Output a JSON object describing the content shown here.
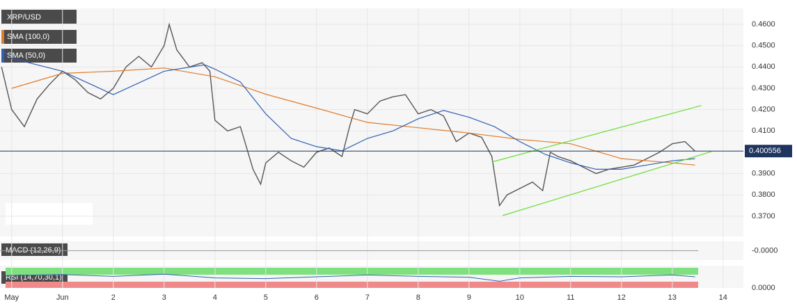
{
  "chart_data": {
    "type": "line",
    "symbol": "XRP/USD",
    "xlim": [
      -0.23,
      14.4
    ],
    "ylim": [
      0.3605,
      0.4675
    ],
    "grid": true,
    "xticks": [
      {
        "value": 0,
        "label": "May"
      },
      {
        "value": 1,
        "label": "Jun"
      },
      2,
      3,
      4,
      5,
      6,
      7,
      8,
      9,
      10,
      11,
      12,
      13,
      14
    ],
    "yticks": [
      {
        "value": 0.46,
        "label": "0.4600"
      },
      {
        "value": 0.45,
        "label": "0.4500"
      },
      {
        "value": 0.44,
        "label": "0.4400"
      },
      {
        "value": 0.43,
        "label": "0.4300"
      },
      {
        "value": 0.42,
        "label": "0.4200"
      },
      {
        "value": 0.41,
        "label": "0.4100"
      },
      {
        "value": 0.39,
        "label": "0.3900"
      },
      {
        "value": 0.38,
        "label": "0.3800"
      },
      {
        "value": 0.37,
        "label": "0.3700"
      }
    ],
    "last_price": 0.400556,
    "last_price_color": "#1f3560",
    "series": [
      {
        "name": "XRP/USD",
        "color": "#555555",
        "x": [
          -0.2,
          0,
          0.25,
          0.5,
          0.75,
          1,
          1.25,
          1.5,
          1.75,
          2,
          2.25,
          2.5,
          2.75,
          3,
          3.1,
          3.25,
          3.5,
          3.75,
          3.9,
          4,
          4.25,
          4.5,
          4.75,
          4.9,
          5,
          5.25,
          5.5,
          5.75,
          6,
          6.25,
          6.5,
          6.65,
          6.75,
          7,
          7.25,
          7.5,
          7.75,
          8,
          8.25,
          8.5,
          8.75,
          9,
          9.25,
          9.45,
          9.6,
          9.75,
          10,
          10.25,
          10.45,
          10.6,
          10.75,
          11,
          11.25,
          11.5,
          11.75,
          12,
          12.25,
          12.5,
          12.75,
          13,
          13.25,
          13.45
        ],
        "values": [
          0.44,
          0.42,
          0.412,
          0.425,
          0.432,
          0.438,
          0.434,
          0.428,
          0.425,
          0.43,
          0.44,
          0.445,
          0.44,
          0.45,
          0.46,
          0.448,
          0.44,
          0.442,
          0.438,
          0.415,
          0.41,
          0.412,
          0.392,
          0.385,
          0.395,
          0.4,
          0.396,
          0.393,
          0.4,
          0.402,
          0.398,
          0.412,
          0.42,
          0.418,
          0.424,
          0.426,
          0.427,
          0.418,
          0.42,
          0.417,
          0.405,
          0.409,
          0.407,
          0.398,
          0.375,
          0.38,
          0.383,
          0.386,
          0.382,
          0.4,
          0.398,
          0.396,
          0.393,
          0.39,
          0.392,
          0.393,
          0.394,
          0.397,
          0.4,
          0.404,
          0.405,
          0.4005
        ]
      },
      {
        "name": "SMA (100,0)",
        "color": "#e07b2a",
        "x": [
          0,
          1,
          2,
          3,
          4,
          5,
          6,
          7,
          8,
          9,
          10,
          11,
          12,
          13,
          13.45
        ],
        "values": [
          0.43,
          0.437,
          0.438,
          0.4395,
          0.4354,
          0.4272,
          0.4207,
          0.414,
          0.4115,
          0.409,
          0.406,
          0.404,
          0.397,
          0.395,
          0.394
        ]
      },
      {
        "name": "SMA (50,0)",
        "color": "#2f5fb3",
        "x": [
          -0.2,
          0,
          1,
          2,
          3,
          3.8,
          4,
          4.5,
          5,
          5.5,
          6,
          6.5,
          7,
          7.5,
          8,
          8.5,
          9,
          9.5,
          10,
          10.5,
          11,
          11.5,
          12,
          12.5,
          13,
          13.45
        ],
        "values": [
          0.448,
          0.444,
          0.438,
          0.427,
          0.438,
          0.441,
          0.439,
          0.433,
          0.418,
          0.4065,
          0.4026,
          0.4007,
          0.4065,
          0.41,
          0.4157,
          0.4196,
          0.4164,
          0.412,
          0.405,
          0.399,
          0.395,
          0.392,
          0.392,
          0.394,
          0.396,
          0.397
        ]
      }
    ],
    "trendlines": [
      {
        "color": "#66dd33",
        "x": [
          9.45,
          13.57
        ],
        "y": [
          0.3954,
          0.4219
        ]
      },
      {
        "color": "#66dd33",
        "x": [
          9.66,
          13.77
        ],
        "y": [
          0.3703,
          0.4003
        ]
      }
    ],
    "macd": {
      "label": "MACD (12,26,9)",
      "ylim": [
        -1,
        1
      ],
      "yticks": [
        {
          "value": 0,
          "label": "-0.0000"
        }
      ]
    },
    "rsi": {
      "label": "RSI (14,70,30,1)",
      "ylim": [
        0,
        100
      ],
      "yticks": [
        {
          "value": 0,
          "label": "0.0000"
        }
      ],
      "color": "#2f5fb3",
      "x": [
        -0.2,
        1,
        2,
        3,
        4,
        5,
        6,
        7,
        8,
        9,
        9.6,
        10,
        11,
        12,
        13,
        13.45
      ],
      "values": [
        55,
        60,
        52,
        62,
        45,
        42,
        50,
        58,
        52,
        48,
        30,
        45,
        52,
        50,
        58,
        50
      ]
    }
  }
}
